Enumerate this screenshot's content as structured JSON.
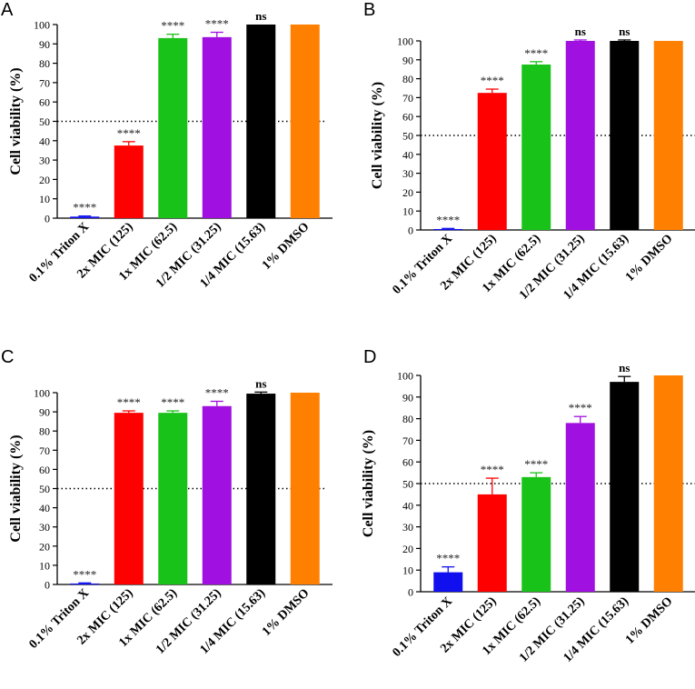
{
  "chart_data": [
    {
      "panel": "A",
      "type": "bar",
      "ylabel": "Cell viability (%)",
      "ylim": [
        0,
        100
      ],
      "yticks": [
        0,
        10,
        20,
        30,
        40,
        50,
        60,
        70,
        80,
        90,
        100
      ],
      "reference_line": 50,
      "categories": [
        "0.1% Triton X",
        "2x MIC (125)",
        "1x MIC (62.5)",
        "1/2 MIC (31.25)",
        "1/4 MIC (15.63)",
        "1% DMSO"
      ],
      "values": [
        0.8,
        37.5,
        93,
        93.5,
        100,
        100
      ],
      "errors": [
        0.3,
        2,
        2,
        2.5,
        0,
        0
      ],
      "colors": [
        "#1010ee",
        "#ff0000",
        "#19c219",
        "#a010e0",
        "#000000",
        "#ff8000"
      ],
      "significance": [
        "****",
        "****",
        "****",
        "****",
        "ns",
        ""
      ]
    },
    {
      "panel": "B",
      "type": "bar",
      "ylabel": "Cell viability (%)",
      "ylim": [
        0,
        100
      ],
      "yticks": [
        0,
        10,
        20,
        30,
        40,
        50,
        60,
        70,
        80,
        90,
        100
      ],
      "reference_line": 50,
      "categories": [
        "0.1% Triton X",
        "2x MIC (125)",
        "1x MIC (62.5)",
        "1/2 MIC (31.25)",
        "1/4 MIC (15.63)",
        "1% DMSO"
      ],
      "values": [
        0.5,
        72.5,
        87.5,
        100,
        100,
        100
      ],
      "errors": [
        0.3,
        2,
        1.5,
        0.5,
        0.5,
        0
      ],
      "colors": [
        "#1010ee",
        "#ff0000",
        "#19c219",
        "#a010e0",
        "#000000",
        "#ff8000"
      ],
      "significance": [
        "****",
        "****",
        "****",
        "ns",
        "ns",
        ""
      ]
    },
    {
      "panel": "C",
      "type": "bar",
      "ylabel": "Cell viability (%)",
      "ylim": [
        0,
        100
      ],
      "yticks": [
        0,
        10,
        20,
        30,
        40,
        50,
        60,
        70,
        80,
        90,
        100
      ],
      "reference_line": 50,
      "categories": [
        "0.1% Triton X",
        "2x MIC (125)",
        "1x MIC (62.5)",
        "1/2 MIC (31.25)",
        "1/4 MIC (15.63)",
        "1% DMSO"
      ],
      "values": [
        0.5,
        89.5,
        89.5,
        93,
        99.5,
        100
      ],
      "errors": [
        0.3,
        1,
        1,
        2.5,
        0.8,
        0
      ],
      "colors": [
        "#1010ee",
        "#ff0000",
        "#19c219",
        "#a010e0",
        "#000000",
        "#ff8000"
      ],
      "significance": [
        "****",
        "****",
        "****",
        "****",
        "ns",
        ""
      ]
    },
    {
      "panel": "D",
      "type": "bar",
      "ylabel": "Cell viability (%)",
      "ylim": [
        0,
        100
      ],
      "yticks": [
        0,
        10,
        20,
        30,
        40,
        50,
        60,
        70,
        80,
        90,
        100
      ],
      "reference_line": 50,
      "categories": [
        "0.1% Triton X",
        "2x MIC (125)",
        "1x MIC (62.5)",
        "1/2 MIC (31.25)",
        "1/4 MIC (15.63)",
        "1% DMSO"
      ],
      "values": [
        9,
        45,
        53,
        78,
        97,
        100
      ],
      "errors": [
        2.5,
        7.5,
        2,
        3,
        2.5,
        0
      ],
      "colors": [
        "#1010ee",
        "#ff0000",
        "#19c219",
        "#a010e0",
        "#000000",
        "#ff8000"
      ],
      "significance": [
        "****",
        "****",
        "****",
        "****",
        "ns",
        ""
      ]
    }
  ]
}
